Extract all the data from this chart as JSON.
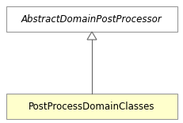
{
  "bg_color": "#ffffff",
  "box1_text": "AbstractDomainPostProcessor",
  "box1_facecolor": "#ffffff",
  "box1_edgecolor": "#999999",
  "box2_text": "PostProcessDomainClasses",
  "box2_facecolor": "#ffffcc",
  "box2_edgecolor": "#999999",
  "arrow_color": "#666666",
  "text_color": "#000000",
  "fontsize": 8.5,
  "fig_width": 2.32,
  "fig_height": 1.55,
  "dpi": 100
}
